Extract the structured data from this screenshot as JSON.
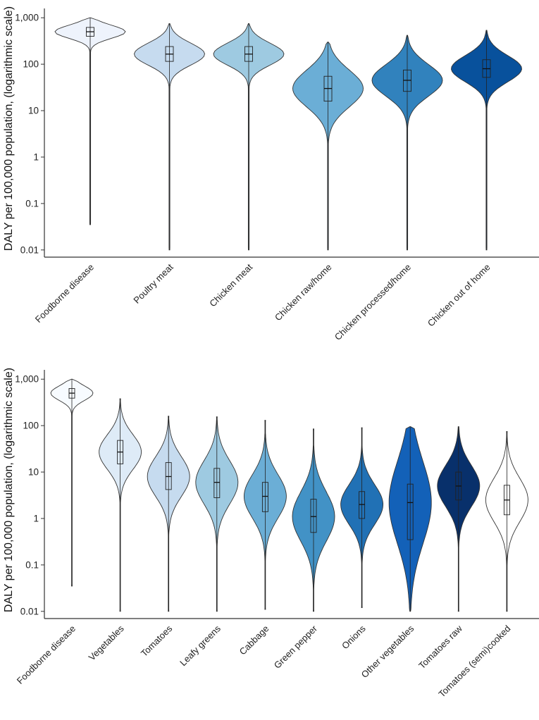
{
  "chart_data": [
    {
      "type": "violin",
      "ylabel": "DALY per 100,000 population, (logarithmic scale)",
      "yscale": "log",
      "ylim": [
        0.007,
        1200
      ],
      "yticks": [
        0.01,
        0.1,
        1,
        10,
        100,
        1000
      ],
      "ytick_labels": [
        "0.01",
        "0.1",
        "1",
        "10",
        "100",
        "1,000"
      ],
      "categories": [
        "Foodborne disease",
        "Poultry meat",
        "Chicken meat",
        "Chicken raw/home",
        "Chicken processed/home",
        "Chicken out of home"
      ],
      "series": [
        {
          "name": "Foodborne disease",
          "min": 0.035,
          "max": 1000,
          "median": 500,
          "q1": 400,
          "q3": 620,
          "color": "#eef3fc"
        },
        {
          "name": "Poultry meat",
          "min": 0.01,
          "max": 750,
          "median": 165,
          "q1": 115,
          "q3": 240,
          "color": "#c6dbef"
        },
        {
          "name": "Chicken meat",
          "min": 0.01,
          "max": 750,
          "median": 165,
          "q1": 115,
          "q3": 240,
          "color": "#9ecae1"
        },
        {
          "name": "Chicken raw/home",
          "min": 0.01,
          "max": 300,
          "median": 30,
          "q1": 16,
          "q3": 55,
          "color": "#6baed6"
        },
        {
          "name": "Chicken processed/home",
          "min": 0.01,
          "max": 420,
          "median": 45,
          "q1": 26,
          "q3": 75,
          "color": "#3182bd"
        },
        {
          "name": "Chicken out of home",
          "min": 0.01,
          "max": 540,
          "median": 80,
          "q1": 52,
          "q3": 125,
          "color": "#08519c"
        }
      ]
    },
    {
      "type": "violin",
      "ylabel": "DALY per 100,000 population, (logarithmic scale)",
      "yscale": "log",
      "ylim": [
        0.007,
        1200
      ],
      "yticks": [
        0.01,
        0.1,
        1,
        10,
        100,
        1000
      ],
      "ytick_labels": [
        "0.01",
        "0.1",
        "1",
        "10",
        "100",
        "1,000"
      ],
      "categories": [
        "Foodborne disease",
        "Vegetables",
        "Tomatoes",
        "Leafy greens",
        "Cabbage",
        "Green pepper",
        "Onions",
        "Other vegetables",
        "Tomatoes raw",
        "Tomatoes (semi)cooked"
      ],
      "series": [
        {
          "name": "Foodborne disease",
          "min": 0.035,
          "max": 1000,
          "median": 500,
          "q1": 390,
          "q3": 630,
          "color": "#f7fbff"
        },
        {
          "name": "Vegetables",
          "min": 0.01,
          "max": 380,
          "median": 27,
          "q1": 15,
          "q3": 48,
          "color": "#deebf7"
        },
        {
          "name": "Tomatoes",
          "min": 0.01,
          "max": 160,
          "median": 8,
          "q1": 4.2,
          "q3": 16,
          "color": "#c6dbef"
        },
        {
          "name": "Leafy greens",
          "min": 0.01,
          "max": 155,
          "median": 6,
          "q1": 2.8,
          "q3": 12,
          "color": "#9ecae1"
        },
        {
          "name": "Cabbage",
          "min": 0.011,
          "max": 130,
          "median": 3,
          "q1": 1.4,
          "q3": 6,
          "color": "#6baed6"
        },
        {
          "name": "Green pepper",
          "min": 0.01,
          "max": 85,
          "median": 1.1,
          "q1": 0.5,
          "q3": 2.6,
          "color": "#4292c6"
        },
        {
          "name": "Onions",
          "min": 0.012,
          "max": 90,
          "median": 2,
          "q1": 1,
          "q3": 3.8,
          "color": "#2171b5"
        },
        {
          "name": "Other vegetables",
          "min": 0.01,
          "max": 95,
          "median": 2.2,
          "q1": 0.35,
          "q3": 5.5,
          "color": "#1361b8"
        },
        {
          "name": "Tomatoes raw",
          "min": 0.01,
          "max": 95,
          "median": 5,
          "q1": 2.5,
          "q3": 10,
          "color": "#08306b"
        },
        {
          "name": "Tomatoes (semi)cooked",
          "min": 0.01,
          "max": 75,
          "median": 2.5,
          "q1": 1.2,
          "q3": 5.2,
          "color": "#ffffff"
        }
      ]
    }
  ]
}
